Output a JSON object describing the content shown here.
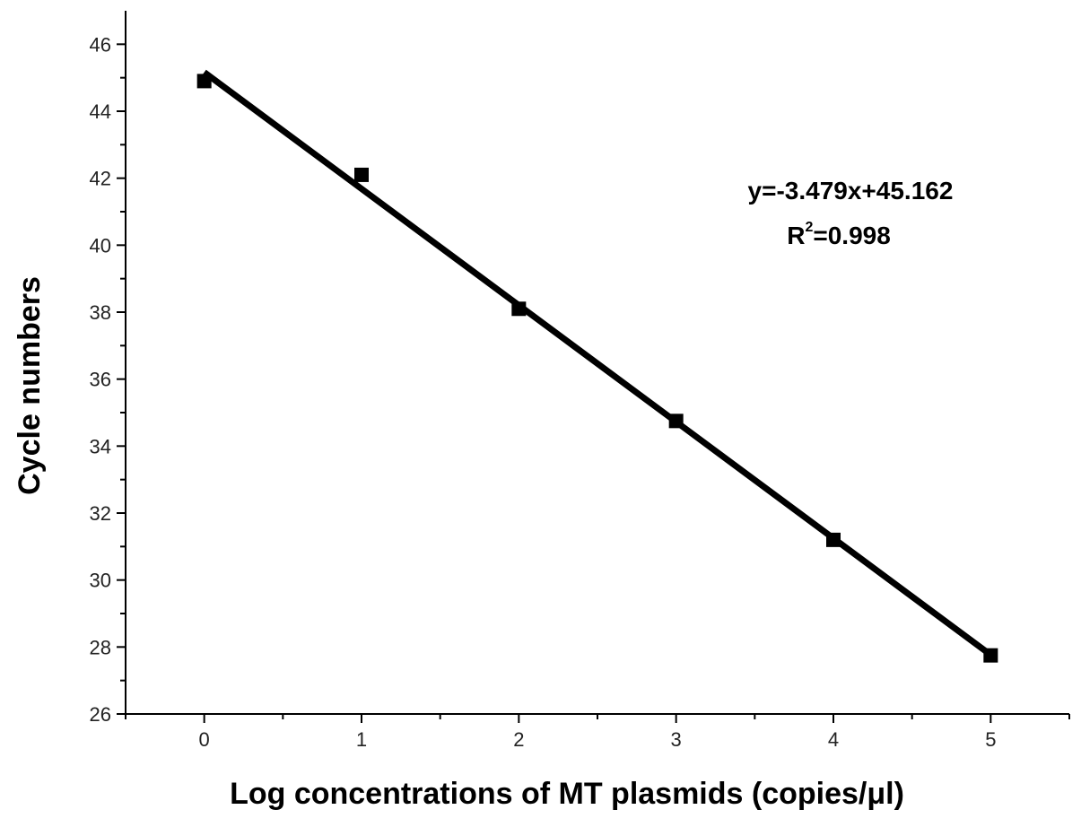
{
  "chart_data": {
    "type": "scatter",
    "xlabel": "Log concentrations of MT plasmids (copies/μl)",
    "ylabel": "Cycle numbers",
    "xlim": [
      -0.5,
      5.5
    ],
    "ylim": [
      26,
      47
    ],
    "x_ticks": [
      0,
      1,
      2,
      3,
      4,
      5
    ],
    "y_ticks": [
      26,
      28,
      30,
      32,
      34,
      36,
      38,
      40,
      42,
      44,
      46
    ],
    "grid": false,
    "points": [
      {
        "x": 0,
        "y": 44.9
      },
      {
        "x": 1,
        "y": 42.1
      },
      {
        "x": 2,
        "y": 38.1
      },
      {
        "x": 3,
        "y": 34.75
      },
      {
        "x": 4,
        "y": 31.2
      },
      {
        "x": 5,
        "y": 27.75
      }
    ],
    "fit_line": {
      "slope": -3.479,
      "intercept": 45.162,
      "x_range": [
        0,
        5
      ]
    },
    "annotation": {
      "equation": "y=-3.479x+45.162",
      "r2_prefix": "R",
      "r2_sup": "2",
      "r2_value": "=0.998"
    },
    "colors": {
      "marker": "#000000",
      "line": "#000000",
      "axis": "#000000"
    }
  }
}
